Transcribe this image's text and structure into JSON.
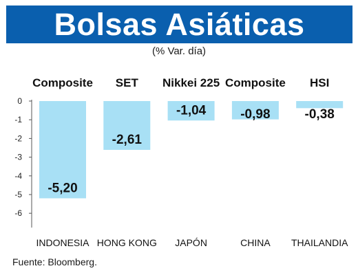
{
  "header": {
    "title": "Bolsas Asiáticas",
    "subtitle": "(% Var. día)",
    "title_bg": "#0a5fae"
  },
  "footer": {
    "source": "Fuente: Bloomberg."
  },
  "chart_data": {
    "type": "bar",
    "categories": [
      "INDONESIA",
      "HONG KONG",
      "JAPÓN",
      "CHINA",
      "THAILANDIA"
    ],
    "index_names": [
      "Composite",
      "SET",
      "Nikkei 225",
      "Composite",
      "HSI"
    ],
    "values": [
      -5.2,
      -2.61,
      -1.04,
      -0.98,
      -0.38
    ],
    "value_labels": [
      "-5,20",
      "-2,61",
      "-1,04",
      "-0,98",
      "-0,38"
    ],
    "ylim": [
      -6,
      0
    ],
    "yticks": [
      0,
      -1,
      -2,
      -3,
      -4,
      -5,
      -6
    ],
    "ytick_labels": [
      "0",
      "-1",
      "-2",
      "-3",
      "-4",
      "-5",
      "-6"
    ],
    "bar_color": "#a8e0f5",
    "title": "Bolsas Asiáticas",
    "xlabel": "",
    "ylabel": ""
  }
}
